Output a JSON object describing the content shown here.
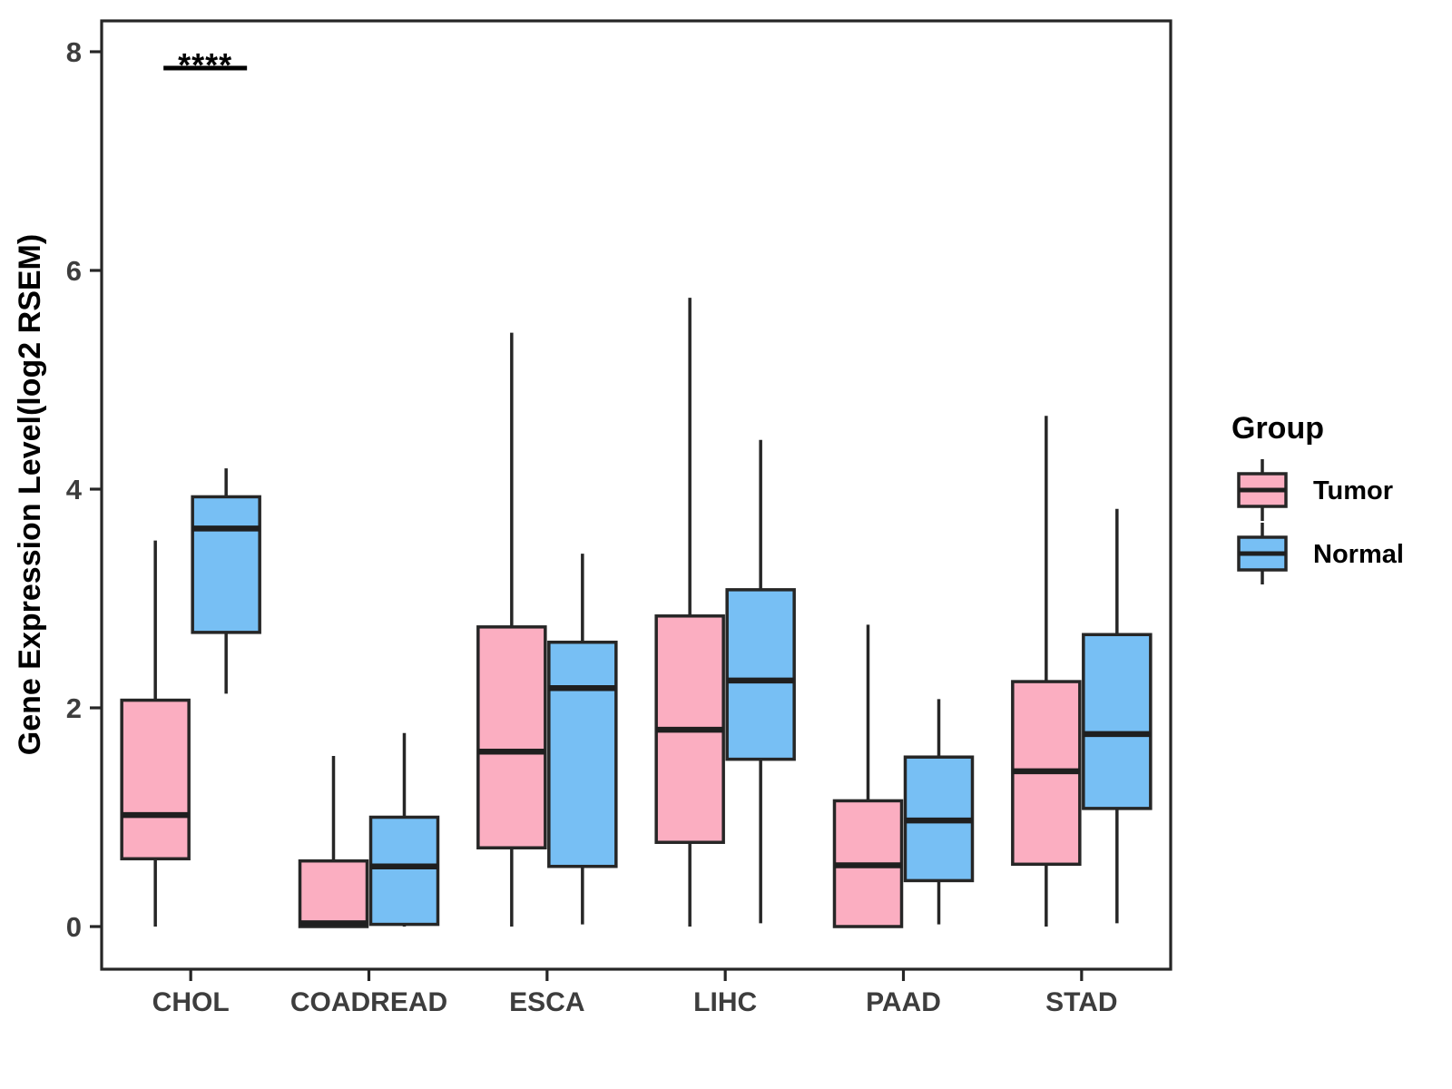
{
  "chart_data": {
    "type": "boxplot",
    "title": "",
    "ylabel": "Gene Expression Level(log2 RSEM)",
    "xlabel": "",
    "categories": [
      "CHOL",
      "COADREAD",
      "ESCA",
      "LIHC",
      "PAAD",
      "STAD"
    ],
    "yticks": [
      0,
      2,
      4,
      6,
      8
    ],
    "ylim": [
      -0.39,
      8.28
    ],
    "grid": false,
    "legend": {
      "title": "Group",
      "position": "right",
      "items": [
        {
          "label": "Tumor",
          "color": "#FBAEC1"
        },
        {
          "label": "Normal",
          "color": "#77BFF4"
        }
      ]
    },
    "series": [
      {
        "name": "Tumor",
        "color": "#FBAEC1",
        "boxes": [
          {
            "category": "CHOL",
            "whisker_low": 0.0,
            "q1": 0.62,
            "median": 1.02,
            "q3": 2.07,
            "whisker_high": 3.53
          },
          {
            "category": "COADREAD",
            "whisker_low": 0.0,
            "q1": 0.0,
            "median": 0.03,
            "q3": 0.6,
            "whisker_high": 1.56
          },
          {
            "category": "ESCA",
            "whisker_low": 0.0,
            "q1": 0.72,
            "median": 1.6,
            "q3": 2.74,
            "whisker_high": 5.43
          },
          {
            "category": "LIHC",
            "whisker_low": 0.0,
            "q1": 0.77,
            "median": 1.8,
            "q3": 2.84,
            "whisker_high": 5.75
          },
          {
            "category": "PAAD",
            "whisker_low": 0.0,
            "q1": 0.0,
            "median": 0.56,
            "q3": 1.15,
            "whisker_high": 2.76
          },
          {
            "category": "STAD",
            "whisker_low": 0.0,
            "q1": 0.57,
            "median": 1.42,
            "q3": 2.24,
            "whisker_high": 4.67
          }
        ]
      },
      {
        "name": "Normal",
        "color": "#77BFF4",
        "boxes": [
          {
            "category": "CHOL",
            "whisker_low": 2.13,
            "q1": 2.69,
            "median": 3.64,
            "q3": 3.93,
            "whisker_high": 4.19
          },
          {
            "category": "COADREAD",
            "whisker_low": 0.0,
            "q1": 0.02,
            "median": 0.55,
            "q3": 1.0,
            "whisker_high": 1.77
          },
          {
            "category": "ESCA",
            "whisker_low": 0.02,
            "q1": 0.55,
            "median": 2.18,
            "q3": 2.6,
            "whisker_high": 3.41
          },
          {
            "category": "LIHC",
            "whisker_low": 0.03,
            "q1": 1.53,
            "median": 2.25,
            "q3": 3.08,
            "whisker_high": 4.45
          },
          {
            "category": "PAAD",
            "whisker_low": 0.02,
            "q1": 0.42,
            "median": 0.97,
            "q3": 1.55,
            "whisker_high": 2.08
          },
          {
            "category": "STAD",
            "whisker_low": 0.03,
            "q1": 1.08,
            "median": 1.76,
            "q3": 2.67,
            "whisker_high": 3.82
          }
        ]
      }
    ],
    "significance": [
      {
        "category": "CHOL",
        "label": "****"
      }
    ],
    "colors": {
      "box_border": "#262626",
      "median_line": "#1f1f1f",
      "panel_frame": "#262626",
      "tick_text": "#3d3d3d",
      "background": "#ffffff"
    }
  }
}
